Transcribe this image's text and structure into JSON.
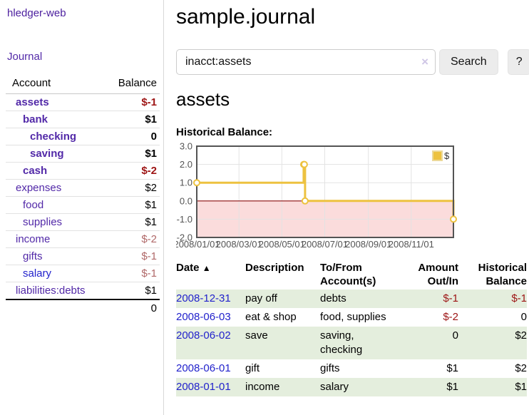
{
  "app": {
    "title": "hledger-web"
  },
  "colors": {
    "link_purple": "#5229a8",
    "link_blue": "#2222cc",
    "negative_strong": "#9d1414",
    "negative_soft": "#b06868",
    "row_stripe_green": "#e4eedd",
    "series_gold": "#edc240"
  },
  "sidebar": {
    "journal_label": "Journal",
    "accounts": {
      "header_account": "Account",
      "header_balance": "Balance",
      "rows": [
        {
          "account": "assets",
          "balance": "$-1"
        },
        {
          "account": "bank",
          "balance": "$1"
        },
        {
          "account": "checking",
          "balance": "0"
        },
        {
          "account": "saving",
          "balance": "$1"
        },
        {
          "account": "cash",
          "balance": "$-2"
        },
        {
          "account": "expenses",
          "balance": "$2"
        },
        {
          "account": "food",
          "balance": "$1"
        },
        {
          "account": "supplies",
          "balance": "$1"
        },
        {
          "account": "income",
          "balance": "$-2"
        },
        {
          "account": "gifts",
          "balance": "$-1"
        },
        {
          "account": "salary",
          "balance": "$-1"
        },
        {
          "account": "liabilities:debts",
          "balance": "$1"
        }
      ],
      "total": "0"
    }
  },
  "main": {
    "title": "sample.journal",
    "search": {
      "value": "inacct:assets",
      "clear_icon": "×",
      "button_label": "Search",
      "help_label": "?"
    },
    "account_heading": "assets"
  },
  "chart_data": {
    "type": "line",
    "title": "Historical Balance:",
    "step": true,
    "xlim": [
      "2008-01-01",
      "2008-12-31"
    ],
    "ylim": [
      -2,
      3
    ],
    "y_ticks": [
      3.0,
      2.0,
      1.0,
      0.0,
      -1.0,
      -2.0
    ],
    "x_ticks": [
      "2008/01/01",
      "2008/03/01",
      "2008/05/01",
      "2008/07/01",
      "2008/09/01",
      "2008/11/01"
    ],
    "x_tick_dates": [
      "2008-01-01",
      "2008-03-01",
      "2008-05-01",
      "2008-07-01",
      "2008-09-01",
      "2008-11-01"
    ],
    "series": [
      {
        "name": "$",
        "color": "#edc240",
        "points": [
          [
            "2008-01-01",
            1
          ],
          [
            "2008-06-01",
            2
          ],
          [
            "2008-06-02",
            2
          ],
          [
            "2008-06-03",
            0
          ],
          [
            "2008-12-31",
            -1
          ]
        ]
      }
    ],
    "grid": true,
    "legend_position": "top-right",
    "negative_region_color": "#fbdcdc",
    "zero_line_color": "#8f0f0f",
    "border_color": "#545454",
    "tick_label_color": "#545454"
  },
  "register": {
    "sort_icon": "▲",
    "headers": {
      "date": "Date",
      "description": "Description",
      "accounts": "To/From Account(s)",
      "amount": "Amount Out/In",
      "balance": "Historical Balance"
    },
    "rows": [
      {
        "date": "2008-12-31",
        "description": "pay off",
        "accounts": "debts",
        "amount": "$-1",
        "balance": "$-1"
      },
      {
        "date": "2008-06-03",
        "description": "eat & shop",
        "accounts": "food, supplies",
        "amount": "$-2",
        "balance": "0"
      },
      {
        "date": "2008-06-02",
        "description": "save",
        "accounts": "saving, checking",
        "amount": "0",
        "balance": "$2"
      },
      {
        "date": "2008-06-01",
        "description": "gift",
        "accounts": "gifts",
        "amount": "$1",
        "balance": "$2"
      },
      {
        "date": "2008-01-01",
        "description": "income",
        "accounts": "salary",
        "amount": "$1",
        "balance": "$1"
      }
    ]
  }
}
